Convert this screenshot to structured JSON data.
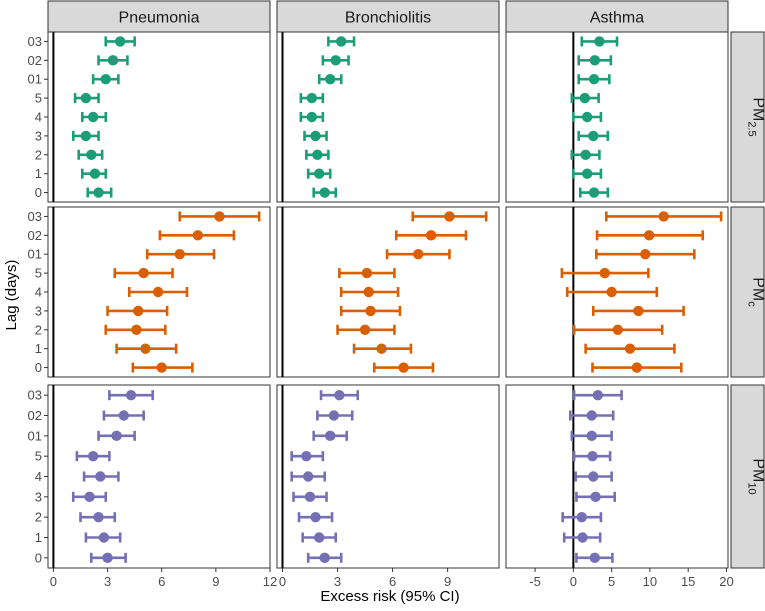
{
  "chart_data": {
    "type": "forest",
    "xlabel": "Excess risk (95% CI)",
    "ylabel": "Lag (days)",
    "lags": [
      "03",
      "02",
      "01",
      "5",
      "4",
      "3",
      "2",
      "1",
      "0"
    ],
    "columns": [
      {
        "name": "Pneumonia",
        "xlim": [
          -0.3,
          12
        ],
        "ticks": [
          0,
          3,
          6,
          9,
          12
        ],
        "tick_labels": [
          "0",
          "3",
          "6",
          "9",
          "12"
        ]
      },
      {
        "name": "Bronchiolitis",
        "xlim": [
          -0.3,
          11.8
        ],
        "ticks": [
          0,
          3,
          6,
          9
        ],
        "tick_labels": [
          "0",
          "3",
          "6",
          "9"
        ]
      },
      {
        "name": "Asthma",
        "xlim": [
          -8.8,
          20.2
        ],
        "ticks": [
          -5,
          0,
          5,
          10,
          15,
          20
        ],
        "tick_labels": [
          "-5",
          "0",
          "5",
          "10",
          "15",
          "20"
        ]
      }
    ],
    "rows": [
      {
        "name": "PM2.5",
        "label_main": "PM",
        "label_sub": "2.5",
        "color": "#1b9e77",
        "data": {
          "Pneumonia": [
            {
              "lag": "03",
              "est": 3.7,
              "lo": 2.9,
              "hi": 4.5
            },
            {
              "lag": "02",
              "est": 3.3,
              "lo": 2.5,
              "hi": 4.1
            },
            {
              "lag": "01",
              "est": 2.9,
              "lo": 2.2,
              "hi": 3.6
            },
            {
              "lag": "5",
              "est": 1.8,
              "lo": 1.2,
              "hi": 2.5
            },
            {
              "lag": "4",
              "est": 2.2,
              "lo": 1.6,
              "hi": 2.9
            },
            {
              "lag": "3",
              "est": 1.8,
              "lo": 1.1,
              "hi": 2.5
            },
            {
              "lag": "2",
              "est": 2.1,
              "lo": 1.4,
              "hi": 2.7
            },
            {
              "lag": "1",
              "est": 2.3,
              "lo": 1.6,
              "hi": 2.9
            },
            {
              "lag": "0",
              "est": 2.5,
              "lo": 1.9,
              "hi": 3.2
            }
          ],
          "Bronchiolitis": [
            {
              "lag": "03",
              "est": 3.2,
              "lo": 2.5,
              "hi": 3.9
            },
            {
              "lag": "02",
              "est": 2.9,
              "lo": 2.2,
              "hi": 3.6
            },
            {
              "lag": "01",
              "est": 2.6,
              "lo": 2.0,
              "hi": 3.2
            },
            {
              "lag": "5",
              "est": 1.6,
              "lo": 1.0,
              "hi": 2.2
            },
            {
              "lag": "4",
              "est": 1.6,
              "lo": 1.0,
              "hi": 2.2
            },
            {
              "lag": "3",
              "est": 1.8,
              "lo": 1.2,
              "hi": 2.4
            },
            {
              "lag": "2",
              "est": 1.9,
              "lo": 1.3,
              "hi": 2.5
            },
            {
              "lag": "1",
              "est": 2.0,
              "lo": 1.4,
              "hi": 2.6
            },
            {
              "lag": "0",
              "est": 2.3,
              "lo": 1.7,
              "hi": 2.9
            }
          ],
          "Asthma": [
            {
              "lag": "03",
              "est": 3.4,
              "lo": 1.1,
              "hi": 5.7
            },
            {
              "lag": "02",
              "est": 2.8,
              "lo": 0.7,
              "hi": 4.9
            },
            {
              "lag": "01",
              "est": 2.7,
              "lo": 0.7,
              "hi": 4.7
            },
            {
              "lag": "5",
              "est": 1.5,
              "lo": -0.2,
              "hi": 3.3
            },
            {
              "lag": "4",
              "est": 1.8,
              "lo": 0.0,
              "hi": 3.6
            },
            {
              "lag": "3",
              "est": 2.6,
              "lo": 0.7,
              "hi": 4.5
            },
            {
              "lag": "2",
              "est": 1.6,
              "lo": -0.2,
              "hi": 3.4
            },
            {
              "lag": "1",
              "est": 1.8,
              "lo": 0.0,
              "hi": 3.6
            },
            {
              "lag": "0",
              "est": 2.7,
              "lo": 0.9,
              "hi": 4.5
            }
          ]
        }
      },
      {
        "name": "PMc",
        "label_main": "PM",
        "label_sub": "c",
        "color": "#d95f02",
        "data": {
          "Pneumonia": [
            {
              "lag": "03",
              "est": 9.2,
              "lo": 7.0,
              "hi": 11.4
            },
            {
              "lag": "02",
              "est": 8.0,
              "lo": 5.9,
              "hi": 10.0
            },
            {
              "lag": "01",
              "est": 7.0,
              "lo": 5.2,
              "hi": 8.9
            },
            {
              "lag": "5",
              "est": 5.0,
              "lo": 3.4,
              "hi": 6.6
            },
            {
              "lag": "4",
              "est": 5.8,
              "lo": 4.2,
              "hi": 7.4
            },
            {
              "lag": "3",
              "est": 4.7,
              "lo": 3.0,
              "hi": 6.3
            },
            {
              "lag": "2",
              "est": 4.6,
              "lo": 2.9,
              "hi": 6.2
            },
            {
              "lag": "1",
              "est": 5.1,
              "lo": 3.5,
              "hi": 6.8
            },
            {
              "lag": "0",
              "est": 6.0,
              "lo": 4.4,
              "hi": 7.7
            }
          ],
          "Bronchiolitis": [
            {
              "lag": "03",
              "est": 9.1,
              "lo": 7.1,
              "hi": 11.1
            },
            {
              "lag": "02",
              "est": 8.1,
              "lo": 6.2,
              "hi": 10.0
            },
            {
              "lag": "01",
              "est": 7.4,
              "lo": 5.7,
              "hi": 9.1
            },
            {
              "lag": "5",
              "est": 4.6,
              "lo": 3.1,
              "hi": 6.1
            },
            {
              "lag": "4",
              "est": 4.7,
              "lo": 3.2,
              "hi": 6.3
            },
            {
              "lag": "3",
              "est": 4.8,
              "lo": 3.2,
              "hi": 6.4
            },
            {
              "lag": "2",
              "est": 4.5,
              "lo": 3.0,
              "hi": 6.1
            },
            {
              "lag": "1",
              "est": 5.4,
              "lo": 3.9,
              "hi": 7.0
            },
            {
              "lag": "0",
              "est": 6.6,
              "lo": 5.0,
              "hi": 8.2
            }
          ],
          "Asthma": [
            {
              "lag": "03",
              "est": 11.8,
              "lo": 4.3,
              "hi": 19.3
            },
            {
              "lag": "02",
              "est": 9.9,
              "lo": 3.1,
              "hi": 16.9
            },
            {
              "lag": "01",
              "est": 9.4,
              "lo": 3.0,
              "hi": 15.8
            },
            {
              "lag": "5",
              "est": 4.1,
              "lo": -1.5,
              "hi": 9.8
            },
            {
              "lag": "4",
              "est": 5.0,
              "lo": -0.8,
              "hi": 10.9
            },
            {
              "lag": "3",
              "est": 8.5,
              "lo": 2.6,
              "hi": 14.4
            },
            {
              "lag": "2",
              "est": 5.8,
              "lo": 0.1,
              "hi": 11.6
            },
            {
              "lag": "1",
              "est": 7.4,
              "lo": 1.6,
              "hi": 13.2
            },
            {
              "lag": "0",
              "est": 8.3,
              "lo": 2.5,
              "hi": 14.1
            }
          ]
        }
      },
      {
        "name": "PM10",
        "label_main": "PM",
        "label_sub": "10",
        "color": "#7570b3",
        "data": {
          "Pneumonia": [
            {
              "lag": "03",
              "est": 4.3,
              "lo": 3.1,
              "hi": 5.5
            },
            {
              "lag": "02",
              "est": 3.9,
              "lo": 2.8,
              "hi": 5.0
            },
            {
              "lag": "01",
              "est": 3.5,
              "lo": 2.5,
              "hi": 4.5
            },
            {
              "lag": "5",
              "est": 2.2,
              "lo": 1.3,
              "hi": 3.1
            },
            {
              "lag": "4",
              "est": 2.6,
              "lo": 1.7,
              "hi": 3.6
            },
            {
              "lag": "3",
              "est": 2.0,
              "lo": 1.1,
              "hi": 2.9
            },
            {
              "lag": "2",
              "est": 2.5,
              "lo": 1.5,
              "hi": 3.4
            },
            {
              "lag": "1",
              "est": 2.8,
              "lo": 1.8,
              "hi": 3.7
            },
            {
              "lag": "0",
              "est": 3.0,
              "lo": 2.1,
              "hi": 4.0
            }
          ],
          "Bronchiolitis": [
            {
              "lag": "03",
              "est": 3.1,
              "lo": 2.1,
              "hi": 4.1
            },
            {
              "lag": "02",
              "est": 2.8,
              "lo": 1.9,
              "hi": 3.8
            },
            {
              "lag": "01",
              "est": 2.6,
              "lo": 1.7,
              "hi": 3.5
            },
            {
              "lag": "5",
              "est": 1.3,
              "lo": 0.5,
              "hi": 2.2
            },
            {
              "lag": "4",
              "est": 1.4,
              "lo": 0.5,
              "hi": 2.3
            },
            {
              "lag": "3",
              "est": 1.5,
              "lo": 0.6,
              "hi": 2.4
            },
            {
              "lag": "2",
              "est": 1.8,
              "lo": 0.9,
              "hi": 2.7
            },
            {
              "lag": "1",
              "est": 2.0,
              "lo": 1.1,
              "hi": 2.9
            },
            {
              "lag": "0",
              "est": 2.3,
              "lo": 1.4,
              "hi": 3.2
            }
          ],
          "Asthma": [
            {
              "lag": "03",
              "est": 3.2,
              "lo": 0.1,
              "hi": 6.3
            },
            {
              "lag": "02",
              "est": 2.4,
              "lo": -0.4,
              "hi": 5.2
            },
            {
              "lag": "01",
              "est": 2.4,
              "lo": -0.2,
              "hi": 5.0
            },
            {
              "lag": "5",
              "est": 2.5,
              "lo": 0.1,
              "hi": 4.8
            },
            {
              "lag": "4",
              "est": 2.6,
              "lo": 0.3,
              "hi": 5.0
            },
            {
              "lag": "3",
              "est": 2.9,
              "lo": 0.4,
              "hi": 5.4
            },
            {
              "lag": "2",
              "est": 1.1,
              "lo": -1.4,
              "hi": 3.6
            },
            {
              "lag": "1",
              "est": 1.2,
              "lo": -1.2,
              "hi": 3.5
            },
            {
              "lag": "0",
              "est": 2.8,
              "lo": 0.4,
              "hi": 5.1
            }
          ]
        }
      }
    ]
  }
}
